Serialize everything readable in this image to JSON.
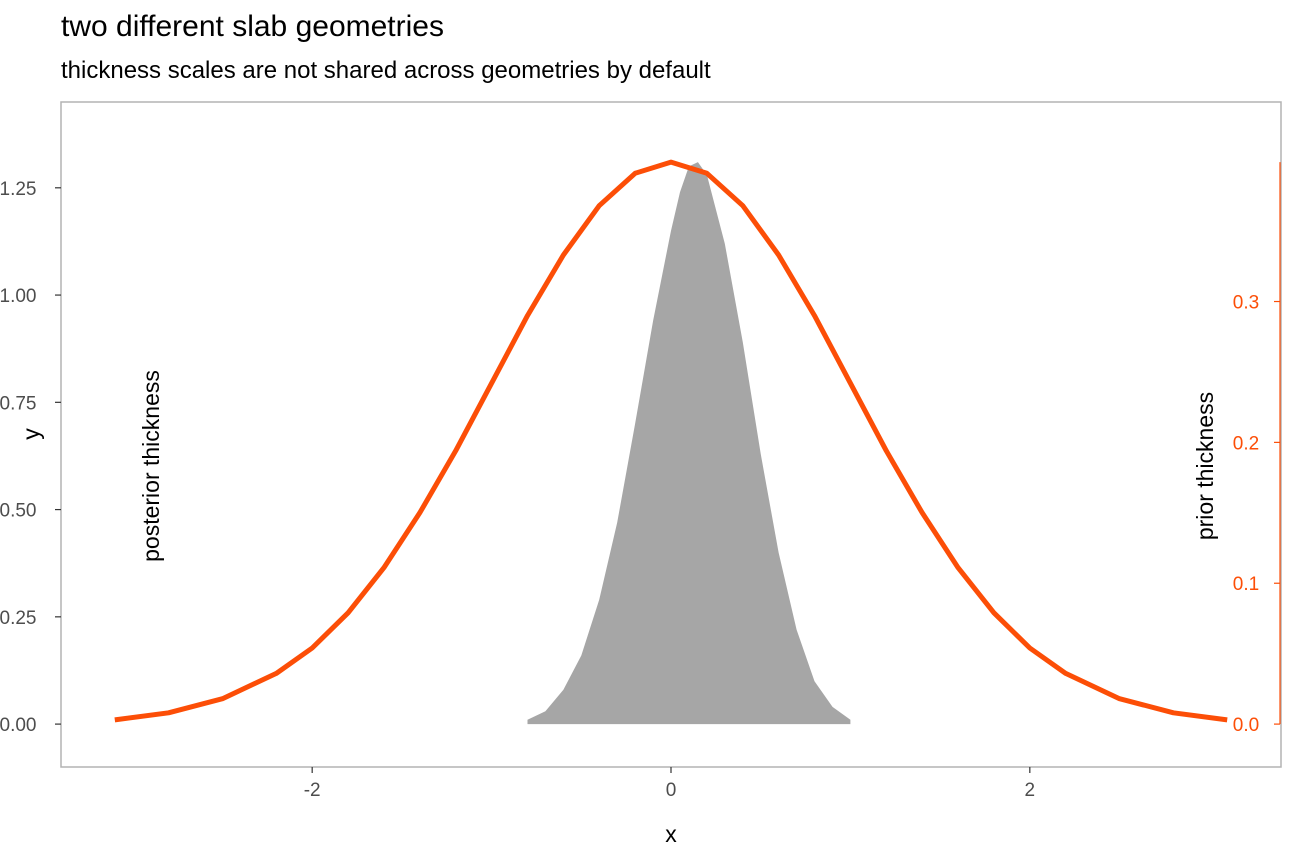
{
  "title": "two different slab geometries",
  "subtitle": "thickness scales are not shared across geometries by default",
  "colors": {
    "prior": "#fc4e07",
    "posterior": "#a6a6a6",
    "panel_border": "#b3b3b3",
    "tick_text": "#4d4d4d"
  },
  "chart_data": {
    "type": "area",
    "title": "two different slab geometries",
    "subtitle": "thickness scales are not shared across geometries by default",
    "xlabel": "x",
    "ylabel": "y",
    "xlim": [
      -3.4,
      3.4
    ],
    "ylim": [
      -0.1,
      1.45
    ],
    "x_ticks": [
      -2,
      0,
      2
    ],
    "x_tick_labels": [
      "-2",
      "0",
      "2"
    ],
    "y_ticks": [
      0,
      0.25,
      0.5,
      0.75,
      1.0,
      1.25
    ],
    "y_tick_labels": [
      "0.00",
      "0.25",
      "0.50",
      "0.75",
      "1.00",
      "1.25"
    ],
    "secondary_axis": {
      "label": "prior thickness",
      "side": "right",
      "ticks": [
        0,
        0.1,
        0.2,
        0.3
      ],
      "tick_labels": [
        "0.0",
        "0.1",
        "0.2",
        "0.3"
      ],
      "max_value": 0.399
    },
    "grid": false,
    "series": [
      {
        "name": "posterior thickness",
        "geometry": "filled slab",
        "x": [
          -0.8,
          -0.7,
          -0.6,
          -0.5,
          -0.4,
          -0.3,
          -0.2,
          -0.1,
          0.0,
          0.05,
          0.1,
          0.15,
          0.2,
          0.3,
          0.4,
          0.5,
          0.6,
          0.7,
          0.8,
          0.9,
          1.0
        ],
        "y": [
          0.01,
          0.03,
          0.08,
          0.16,
          0.29,
          0.47,
          0.7,
          0.94,
          1.15,
          1.24,
          1.3,
          1.31,
          1.28,
          1.12,
          0.89,
          0.63,
          0.4,
          0.22,
          0.1,
          0.04,
          0.01
        ]
      },
      {
        "name": "prior thickness",
        "geometry": "line",
        "x": [
          -3.1,
          -2.8,
          -2.5,
          -2.2,
          -2.0,
          -1.8,
          -1.6,
          -1.4,
          -1.2,
          -1.0,
          -0.8,
          -0.6,
          -0.4,
          -0.2,
          0.0,
          0.2,
          0.4,
          0.6,
          0.8,
          1.0,
          1.2,
          1.4,
          1.6,
          1.8,
          2.0,
          2.2,
          2.5,
          2.8,
          3.1
        ],
        "y": [
          0.003,
          0.008,
          0.018,
          0.036,
          0.054,
          0.079,
          0.111,
          0.15,
          0.194,
          0.242,
          0.29,
          0.333,
          0.368,
          0.391,
          0.399,
          0.391,
          0.368,
          0.333,
          0.29,
          0.242,
          0.194,
          0.15,
          0.111,
          0.079,
          0.054,
          0.036,
          0.018,
          0.008,
          0.003
        ]
      }
    ]
  }
}
